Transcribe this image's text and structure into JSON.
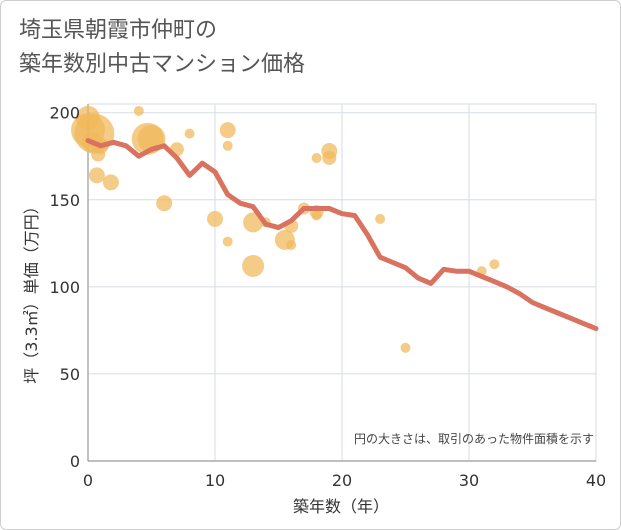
{
  "title_lines": [
    "埼玉県朝霞市仲町の",
    "築年数別中古マンション価格"
  ],
  "note": "円の大きさは、取引のあった物件面積を示す",
  "colors": {
    "bubble": "#f0b95a",
    "line": "#d9735f",
    "grid": "#d6dde6",
    "axis": "#999999"
  },
  "chart_data": {
    "type": "scatter",
    "title": "埼玉県朝霞市仲町の築年数別中古マンション価格",
    "xlabel": "築年数（年）",
    "ylabel": "坪（3.3㎡）単価（万円）",
    "xlim": [
      0,
      40
    ],
    "ylim": [
      0,
      205
    ],
    "x_ticks": [
      0,
      10,
      20,
      30,
      40
    ],
    "y_ticks": [
      0,
      50,
      100,
      150,
      200
    ],
    "grid": true,
    "legend": "none",
    "bubbles": [
      {
        "x": 0,
        "y": 197,
        "s": 12
      },
      {
        "x": 0,
        "y": 190,
        "s": 17
      },
      {
        "x": 0.5,
        "y": 188,
        "s": 20
      },
      {
        "x": 0.3,
        "y": 183,
        "s": 10
      },
      {
        "x": 1,
        "y": 181,
        "s": 8
      },
      {
        "x": 0.8,
        "y": 176,
        "s": 7
      },
      {
        "x": 0.7,
        "y": 164,
        "s": 8
      },
      {
        "x": 1.8,
        "y": 160,
        "s": 8
      },
      {
        "x": 4,
        "y": 201,
        "s": 5
      },
      {
        "x": 4.7,
        "y": 185,
        "s": 16
      },
      {
        "x": 5,
        "y": 185,
        "s": 14
      },
      {
        "x": 7,
        "y": 179,
        "s": 7
      },
      {
        "x": 8,
        "y": 188,
        "s": 5
      },
      {
        "x": 6,
        "y": 148,
        "s": 8
      },
      {
        "x": 11,
        "y": 190,
        "s": 8
      },
      {
        "x": 11,
        "y": 181,
        "s": 5
      },
      {
        "x": 10,
        "y": 139,
        "s": 8
      },
      {
        "x": 11,
        "y": 126,
        "s": 5
      },
      {
        "x": 13,
        "y": 137,
        "s": 10
      },
      {
        "x": 14,
        "y": 137,
        "s": 5
      },
      {
        "x": 13,
        "y": 112,
        "s": 11
      },
      {
        "x": 15.5,
        "y": 127,
        "s": 10
      },
      {
        "x": 16,
        "y": 124,
        "s": 5
      },
      {
        "x": 16,
        "y": 135,
        "s": 7
      },
      {
        "x": 17,
        "y": 145,
        "s": 6
      },
      {
        "x": 18,
        "y": 143,
        "s": 7
      },
      {
        "x": 18,
        "y": 141,
        "s": 5
      },
      {
        "x": 18,
        "y": 174,
        "s": 5
      },
      {
        "x": 19,
        "y": 178,
        "s": 8
      },
      {
        "x": 19,
        "y": 174,
        "s": 7
      },
      {
        "x": 23,
        "y": 139,
        "s": 5
      },
      {
        "x": 25,
        "y": 65,
        "s": 5
      },
      {
        "x": 31,
        "y": 109,
        "s": 5
      },
      {
        "x": 32,
        "y": 113,
        "s": 5
      }
    ],
    "series": [
      {
        "type": "line",
        "x": [
          0,
          1,
          2,
          3,
          4,
          5,
          6,
          7,
          8,
          9,
          10,
          11,
          12,
          13,
          14,
          15,
          16,
          17,
          18,
          19,
          20,
          21,
          22,
          23,
          24,
          25,
          26,
          27,
          28,
          29,
          30,
          31,
          32,
          33,
          34,
          35,
          36,
          37,
          38,
          39,
          40
        ],
        "values": [
          184,
          181,
          183,
          181,
          175,
          179,
          181,
          174,
          164,
          171,
          166,
          153,
          148,
          146,
          136,
          134,
          138,
          145,
          145,
          145,
          142,
          141,
          130,
          117,
          114,
          111,
          105,
          102,
          110,
          109,
          109,
          106,
          103,
          100,
          96,
          91,
          88,
          85,
          82,
          79,
          76
        ]
      }
    ]
  }
}
